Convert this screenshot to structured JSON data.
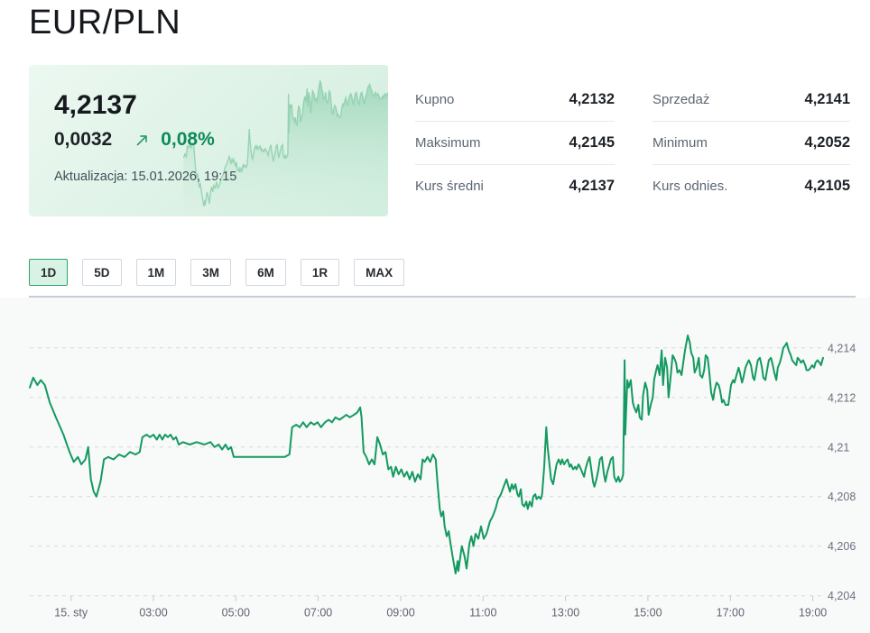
{
  "page": {
    "title": "EUR/PLN"
  },
  "quote_card": {
    "price": "4,2137",
    "change": "0,0032",
    "change_percent": "0,08%",
    "updated_label": "Aktualizacja: 15.01.2026, 19:15",
    "up_color": "#0f8a58",
    "card_green": "#d8f0e2"
  },
  "stats": {
    "columns": [
      {
        "rows": [
          {
            "label": "Kupno",
            "value": "4,2132"
          },
          {
            "label": "Maksimum",
            "value": "4,2145"
          },
          {
            "label": "Kurs średni",
            "value": "4,2137"
          }
        ]
      },
      {
        "rows": [
          {
            "label": "Sprzedaż",
            "value": "4,2141"
          },
          {
            "label": "Minimum",
            "value": "4,2052"
          },
          {
            "label": "Kurs odnies.",
            "value": "4,2105"
          }
        ]
      }
    ]
  },
  "range_buttons": {
    "options": [
      "1D",
      "5D",
      "1M",
      "3M",
      "6M",
      "1R",
      "MAX"
    ],
    "selected": "1D"
  },
  "chart_data": {
    "type": "line",
    "title": "EUR/PLN 1D intraday rate",
    "line_color": "#149a60",
    "grid": "horizontal-dashed",
    "legend": "none",
    "ylim": [
      4.204,
      4.2146
    ],
    "y_ticks": [
      {
        "v": 4.214,
        "label": "4,214"
      },
      {
        "v": 4.212,
        "label": "4,212"
      },
      {
        "v": 4.21,
        "label": "4,21"
      },
      {
        "v": 4.208,
        "label": "4,208"
      },
      {
        "v": 4.206,
        "label": "4,206"
      },
      {
        "v": 4.204,
        "label": "4,204"
      }
    ],
    "x_range_minutes": [
      0,
      1155
    ],
    "x_ticks": [
      {
        "minute": 60,
        "label": "15. sty"
      },
      {
        "minute": 180,
        "label": "03:00"
      },
      {
        "minute": 300,
        "label": "05:00"
      },
      {
        "minute": 420,
        "label": "07:00"
      },
      {
        "minute": 540,
        "label": "09:00"
      },
      {
        "minute": 660,
        "label": "11:00"
      },
      {
        "minute": 780,
        "label": "13:00"
      },
      {
        "minute": 900,
        "label": "15:00"
      },
      {
        "minute": 1020,
        "label": "17:00"
      },
      {
        "minute": 1140,
        "label": "19:00"
      }
    ],
    "points": [
      [
        0,
        4.2124
      ],
      [
        5,
        4.2128
      ],
      [
        11,
        4.2125
      ],
      [
        16,
        4.2127
      ],
      [
        22,
        4.2125
      ],
      [
        29,
        4.2118
      ],
      [
        38,
        4.2112
      ],
      [
        49,
        4.2105
      ],
      [
        58,
        4.2098
      ],
      [
        64,
        4.2094
      ],
      [
        70,
        4.2096
      ],
      [
        75,
        4.2093
      ],
      [
        81,
        4.2095
      ],
      [
        85,
        4.21
      ],
      [
        89,
        4.2087
      ],
      [
        93,
        4.2082
      ],
      [
        97,
        4.208
      ],
      [
        100,
        4.2083
      ],
      [
        103,
        4.2086
      ],
      [
        108,
        4.2095
      ],
      [
        114,
        4.2096
      ],
      [
        122,
        4.2095
      ],
      [
        130,
        4.2097
      ],
      [
        138,
        4.2096
      ],
      [
        146,
        4.2098
      ],
      [
        154,
        4.2097
      ],
      [
        160,
        4.2098
      ],
      [
        164,
        4.2104
      ],
      [
        170,
        4.2105
      ],
      [
        175,
        4.2104
      ],
      [
        180,
        4.2105
      ],
      [
        185,
        4.2103
      ],
      [
        189,
        4.2105
      ],
      [
        193,
        4.2103
      ],
      [
        197,
        4.2105
      ],
      [
        201,
        4.2104
      ],
      [
        205,
        4.2105
      ],
      [
        209,
        4.2103
      ],
      [
        213,
        4.2104
      ],
      [
        217,
        4.2101
      ],
      [
        223,
        4.2102
      ],
      [
        233,
        4.2101
      ],
      [
        243,
        4.2102
      ],
      [
        254,
        4.2101
      ],
      [
        263,
        4.2102
      ],
      [
        269,
        4.21
      ],
      [
        275,
        4.2101
      ],
      [
        280,
        4.2099
      ],
      [
        285,
        4.2101
      ],
      [
        289,
        4.2099
      ],
      [
        293,
        4.21
      ],
      [
        297,
        4.2096
      ],
      [
        306,
        4.2096
      ],
      [
        318,
        4.2096
      ],
      [
        331,
        4.2096
      ],
      [
        344,
        4.2096
      ],
      [
        357,
        4.2096
      ],
      [
        371,
        4.2096
      ],
      [
        378,
        4.2097
      ],
      [
        382,
        4.2108
      ],
      [
        388,
        4.2109
      ],
      [
        393,
        4.2108
      ],
      [
        398,
        4.211
      ],
      [
        403,
        4.2108
      ],
      [
        409,
        4.211
      ],
      [
        414,
        4.2109
      ],
      [
        419,
        4.211
      ],
      [
        424,
        4.2108
      ],
      [
        430,
        4.211
      ],
      [
        435,
        4.2111
      ],
      [
        440,
        4.211
      ],
      [
        445,
        4.2112
      ],
      [
        451,
        4.2111
      ],
      [
        456,
        4.2112
      ],
      [
        461,
        4.2113
      ],
      [
        466,
        4.2112
      ],
      [
        472,
        4.2113
      ],
      [
        477,
        4.2114
      ],
      [
        481,
        4.2116
      ],
      [
        483,
        4.2112
      ],
      [
        486,
        4.2098
      ],
      [
        490,
        4.2096
      ],
      [
        494,
        4.2093
      ],
      [
        498,
        4.2095
      ],
      [
        502,
        4.2093
      ],
      [
        506,
        4.2104
      ],
      [
        510,
        4.2101
      ],
      [
        514,
        4.2097
      ],
      [
        518,
        4.2098
      ],
      [
        522,
        4.2091
      ],
      [
        526,
        4.2092
      ],
      [
        529,
        4.2088
      ],
      [
        533,
        4.2092
      ],
      [
        537,
        4.2089
      ],
      [
        541,
        4.2091
      ],
      [
        545,
        4.2088
      ],
      [
        549,
        4.209
      ],
      [
        553,
        4.2087
      ],
      [
        557,
        4.209
      ],
      [
        561,
        4.2086
      ],
      [
        565,
        4.2089
      ],
      [
        569,
        4.2087
      ],
      [
        572,
        4.2095
      ],
      [
        575,
        4.2094
      ],
      [
        579,
        4.2096
      ],
      [
        583,
        4.2094
      ],
      [
        587,
        4.2097
      ],
      [
        591,
        4.2095
      ],
      [
        594,
        4.2084
      ],
      [
        597,
        4.2075
      ],
      [
        599,
        4.2072
      ],
      [
        602,
        4.2074
      ],
      [
        604,
        4.2068
      ],
      [
        607,
        4.2064
      ],
      [
        610,
        4.2066
      ],
      [
        612,
        4.2062
      ],
      [
        615,
        4.2057
      ],
      [
        620,
        4.2049
      ],
      [
        623,
        4.2054
      ],
      [
        624,
        4.205
      ],
      [
        629,
        4.206
      ],
      [
        633,
        4.2056
      ],
      [
        636,
        4.2051
      ],
      [
        640,
        4.2061
      ],
      [
        643,
        4.2064
      ],
      [
        646,
        4.206
      ],
      [
        649,
        4.2065
      ],
      [
        653,
        4.2063
      ],
      [
        657,
        4.2068
      ],
      [
        661,
        4.2063
      ],
      [
        665,
        4.2065
      ],
      [
        670,
        4.207
      ],
      [
        674,
        4.2072
      ],
      [
        678,
        4.2075
      ],
      [
        682,
        4.2079
      ],
      [
        686,
        4.2081
      ],
      [
        690,
        4.2084
      ],
      [
        694,
        4.2087
      ],
      [
        696,
        4.2085
      ],
      [
        699,
        4.2082
      ],
      [
        702,
        4.2085
      ],
      [
        704,
        4.2083
      ],
      [
        707,
        4.2085
      ],
      [
        710,
        4.2081
      ],
      [
        712,
        4.208
      ],
      [
        715,
        4.2083
      ],
      [
        717,
        4.2077
      ],
      [
        720,
        4.2076
      ],
      [
        723,
        4.2078
      ],
      [
        725,
        4.2075
      ],
      [
        728,
        4.2078
      ],
      [
        731,
        4.2076
      ],
      [
        733,
        4.208
      ],
      [
        736,
        4.2081
      ],
      [
        738,
        4.2079
      ],
      [
        741,
        4.208
      ],
      [
        744,
        4.2079
      ],
      [
        746,
        4.2081
      ],
      [
        749,
        4.2092
      ],
      [
        752,
        4.2108
      ],
      [
        754,
        4.21
      ],
      [
        757,
        4.2092
      ],
      [
        759,
        4.2087
      ],
      [
        762,
        4.2085
      ],
      [
        765,
        4.209
      ],
      [
        767,
        4.2093
      ],
      [
        770,
        4.2095
      ],
      [
        773,
        4.2093
      ],
      [
        775,
        4.2095
      ],
      [
        778,
        4.2093
      ],
      [
        780,
        4.2094
      ],
      [
        783,
        4.2095
      ],
      [
        786,
        4.2092
      ],
      [
        788,
        4.2093
      ],
      [
        791,
        4.2091
      ],
      [
        794,
        4.2092
      ],
      [
        796,
        4.2091
      ],
      [
        799,
        4.2093
      ],
      [
        801,
        4.2092
      ],
      [
        804,
        4.209
      ],
      [
        807,
        4.2088
      ],
      [
        809,
        4.2091
      ],
      [
        812,
        4.2094
      ],
      [
        815,
        4.2096
      ],
      [
        817,
        4.2092
      ],
      [
        820,
        4.2086
      ],
      [
        822,
        4.2084
      ],
      [
        825,
        4.2087
      ],
      [
        828,
        4.2091
      ],
      [
        830,
        4.2095
      ],
      [
        833,
        4.2096
      ],
      [
        836,
        4.2089
      ],
      [
        838,
        4.2086
      ],
      [
        841,
        4.209
      ],
      [
        843,
        4.2092
      ],
      [
        846,
        4.2095
      ],
      [
        849,
        4.2096
      ],
      [
        851,
        4.2088
      ],
      [
        854,
        4.2086
      ],
      [
        857,
        4.2088
      ],
      [
        859,
        4.2086
      ],
      [
        862,
        4.2087
      ],
      [
        864,
        4.2089
      ],
      [
        866,
        4.2135
      ],
      [
        867,
        4.2105
      ],
      [
        870,
        4.2127
      ],
      [
        872,
        4.2124
      ],
      [
        875,
        4.2127
      ],
      [
        878,
        4.2118
      ],
      [
        880,
        4.2116
      ],
      [
        883,
        4.2114
      ],
      [
        886,
        4.2117
      ],
      [
        888,
        4.2112
      ],
      [
        891,
        4.2111
      ],
      [
        893,
        4.2121
      ],
      [
        896,
        4.2126
      ],
      [
        899,
        4.2123
      ],
      [
        901,
        4.2113
      ],
      [
        904,
        4.2117
      ],
      [
        907,
        4.212
      ],
      [
        909,
        4.2127
      ],
      [
        912,
        4.2131
      ],
      [
        914,
        4.2133
      ],
      [
        917,
        4.2129
      ],
      [
        920,
        4.2139
      ],
      [
        922,
        4.2125
      ],
      [
        925,
        4.2136
      ],
      [
        928,
        4.2132
      ],
      [
        930,
        4.212
      ],
      [
        933,
        4.2128
      ],
      [
        936,
        4.2137
      ],
      [
        938,
        4.2136
      ],
      [
        941,
        4.2134
      ],
      [
        943,
        4.213
      ],
      [
        946,
        4.2131
      ],
      [
        949,
        4.2129
      ],
      [
        951,
        4.2133
      ],
      [
        954,
        4.2139
      ],
      [
        958,
        4.2145
      ],
      [
        961,
        4.2142
      ],
      [
        963,
        4.2138
      ],
      [
        966,
        4.2136
      ],
      [
        968,
        4.213
      ],
      [
        971,
        4.2132
      ],
      [
        974,
        4.2136
      ],
      [
        976,
        4.2129
      ],
      [
        979,
        4.2128
      ],
      [
        982,
        4.2131
      ],
      [
        984,
        4.2137
      ],
      [
        987,
        4.2136
      ],
      [
        989,
        4.2131
      ],
      [
        992,
        4.2122
      ],
      [
        995,
        4.2119
      ],
      [
        997,
        4.2123
      ],
      [
        1000,
        4.2126
      ],
      [
        1003,
        4.2125
      ],
      [
        1005,
        4.2123
      ],
      [
        1008,
        4.2118
      ],
      [
        1010,
        4.2119
      ],
      [
        1013,
        4.2117
      ],
      [
        1017,
        4.2117
      ],
      [
        1021,
        4.2125
      ],
      [
        1024,
        4.2127
      ],
      [
        1026,
        4.2126
      ],
      [
        1029,
        4.2129
      ],
      [
        1032,
        4.2132
      ],
      [
        1034,
        4.213
      ],
      [
        1037,
        4.2126
      ],
      [
        1039,
        4.2128
      ],
      [
        1042,
        4.2132
      ],
      [
        1045,
        4.2134
      ],
      [
        1047,
        4.2135
      ],
      [
        1050,
        4.2133
      ],
      [
        1053,
        4.2128
      ],
      [
        1055,
        4.2127
      ],
      [
        1058,
        4.2132
      ],
      [
        1060,
        4.2135
      ],
      [
        1063,
        4.2136
      ],
      [
        1066,
        4.2132
      ],
      [
        1068,
        4.2128
      ],
      [
        1071,
        4.2127
      ],
      [
        1074,
        4.2132
      ],
      [
        1076,
        4.2135
      ],
      [
        1079,
        4.2136
      ],
      [
        1081,
        4.2134
      ],
      [
        1084,
        4.213
      ],
      [
        1087,
        4.2127
      ],
      [
        1089,
        4.2132
      ],
      [
        1092,
        4.2134
      ],
      [
        1095,
        4.2137
      ],
      [
        1097,
        4.214
      ],
      [
        1100,
        4.2141
      ],
      [
        1102,
        4.2142
      ],
      [
        1105,
        4.2139
      ],
      [
        1108,
        4.2137
      ],
      [
        1110,
        4.2135
      ],
      [
        1113,
        4.2134
      ],
      [
        1116,
        4.2133
      ],
      [
        1118,
        4.2136
      ],
      [
        1121,
        4.2135
      ],
      [
        1123,
        4.2134
      ],
      [
        1126,
        4.2135
      ],
      [
        1129,
        4.2133
      ],
      [
        1131,
        4.2131
      ],
      [
        1134,
        4.2131
      ],
      [
        1137,
        4.2132
      ],
      [
        1139,
        4.2133
      ],
      [
        1142,
        4.2132
      ],
      [
        1144,
        4.2134
      ],
      [
        1147,
        4.2135
      ],
      [
        1150,
        4.2134
      ],
      [
        1152,
        4.2133
      ],
      [
        1155,
        4.2136
      ]
    ]
  }
}
